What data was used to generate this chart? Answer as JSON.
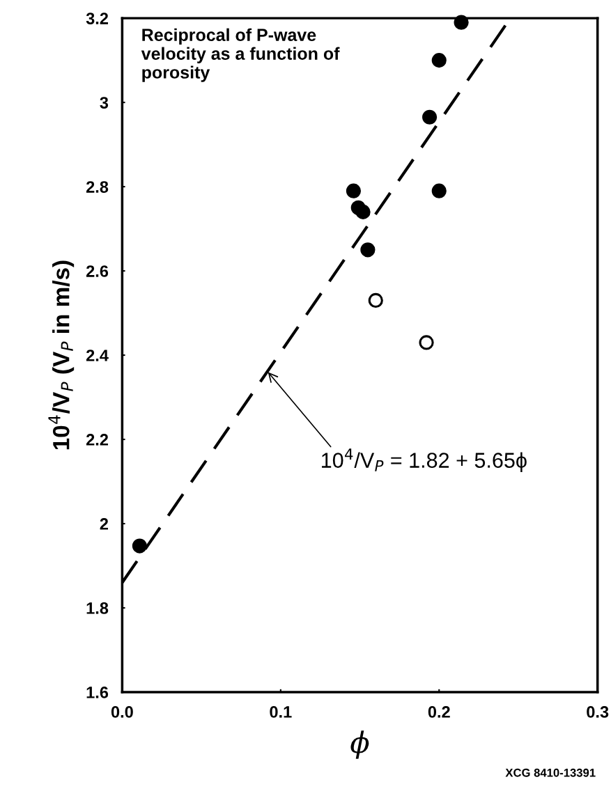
{
  "chart_data": {
    "type": "scatter",
    "title": "Reciprocal of P-wave velocity as a function of porosity",
    "xlabel": "ϕ",
    "ylabel": "10$^{4}$/V$_{P}$ (V$_{P}$ in m/s)",
    "series": [
      {
        "color": "#000000",
        "marker": "circle",
        "x": [
          0.011,
          0.146,
          0.149,
          0.152,
          0.155,
          0.194,
          0.2,
          0.2,
          0.214
        ],
        "values": [
          1.947,
          2.79,
          2.75,
          2.74,
          2.65,
          2.965,
          3.1,
          2.79,
          3.19
        ]
      },
      {
        "color": "#000000",
        "marker": "circle",
        "x": [
          0.16,
          0.192
        ],
        "values": [
          2.53,
          2.43
        ]
      },
      {
        "type": "line",
        "color": "#000000",
        "line_style": "dashed",
        "marker": "none",
        "x": [
          0.0,
          0.245
        ],
        "values": [
          1.86,
          3.2
        ]
      }
    ],
    "annotations": [
      {
        "text": "10$^{4}$/V$_{P}$ = 1.82 + 5.65ϕ",
        "x": 0.092,
        "y": 2.36
      },
      "XCG 8410-13391"
    ],
    "xlim": [
      0.0,
      0.3
    ],
    "ylim": [
      1.6,
      3.2
    ],
    "xticks": [
      {
        "value": 0.0,
        "label": "0.0"
      },
      0.1,
      0.2,
      0.3
    ],
    "yticks": [
      1.6,
      1.8,
      2,
      2.2,
      2.4,
      2.6,
      2.8,
      3,
      3.2
    ],
    "grid": false,
    "legend": false
  }
}
